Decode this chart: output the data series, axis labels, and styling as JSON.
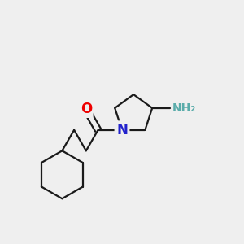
{
  "background_color": "#efefef",
  "bond_color": "#1a1a1a",
  "bond_width": 1.6,
  "O_color": "#ee0000",
  "N_color": "#2222cc",
  "NH2_color": "#5aacaa",
  "figsize": [
    3.0,
    3.0
  ],
  "dpi": 100,
  "xlim": [
    0,
    10
  ],
  "ylim": [
    0,
    10
  ]
}
